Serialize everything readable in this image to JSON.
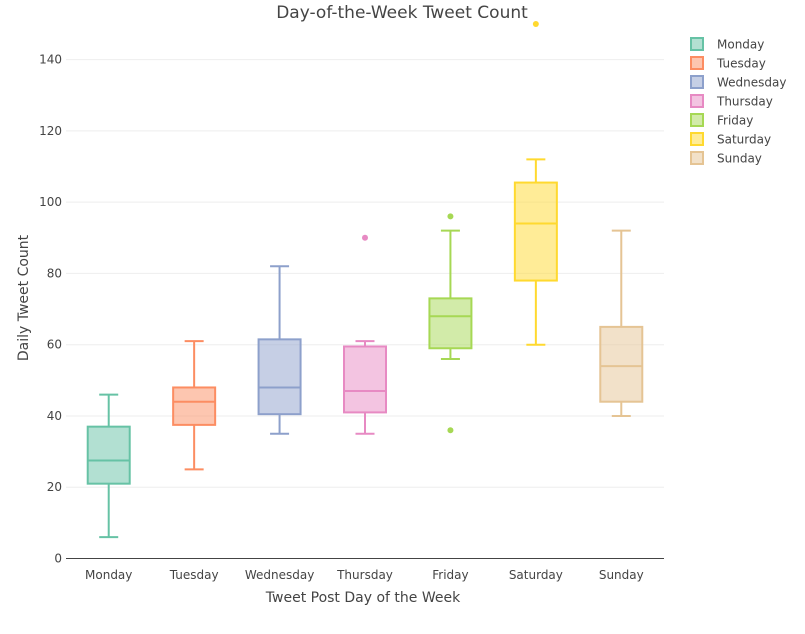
{
  "chart_data": {
    "type": "box",
    "title": "Day-of-the-Week Tweet Count",
    "xlabel": "Tweet Post Day of the Week",
    "ylabel": "Daily Tweet Count",
    "ylim": [
      0,
      150
    ],
    "yticks": [
      0,
      20,
      40,
      60,
      80,
      100,
      120,
      140
    ],
    "grid": true,
    "legend_position": "top-right",
    "series": [
      {
        "name": "Monday",
        "color": "#66c2a5",
        "min": 6,
        "q1": 21,
        "median": 27.5,
        "q3": 37,
        "max": 46,
        "outliers": []
      },
      {
        "name": "Tuesday",
        "color": "#fc8d62",
        "min": 25,
        "q1": 37.5,
        "median": 44,
        "q3": 48,
        "max": 61,
        "outliers": []
      },
      {
        "name": "Wednesday",
        "color": "#8da0cb",
        "min": 35,
        "q1": 40.5,
        "median": 48,
        "q3": 61.5,
        "max": 82,
        "outliers": []
      },
      {
        "name": "Thursday",
        "color": "#e78ac3",
        "min": 35,
        "q1": 41,
        "median": 47,
        "q3": 59.5,
        "max": 61,
        "outliers": [
          90
        ]
      },
      {
        "name": "Friday",
        "color": "#a6d854",
        "min": 56,
        "q1": 59,
        "median": 68,
        "q3": 73,
        "max": 92,
        "outliers": [
          96,
          36
        ]
      },
      {
        "name": "Saturday",
        "color": "#ffd92f",
        "min": 60,
        "q1": 78,
        "median": 94,
        "q3": 105.5,
        "max": 112,
        "outliers": [
          150
        ]
      },
      {
        "name": "Sunday",
        "color": "#e5c494",
        "min": 40,
        "q1": 44,
        "median": 54,
        "q3": 65,
        "max": 92,
        "outliers": []
      }
    ]
  }
}
